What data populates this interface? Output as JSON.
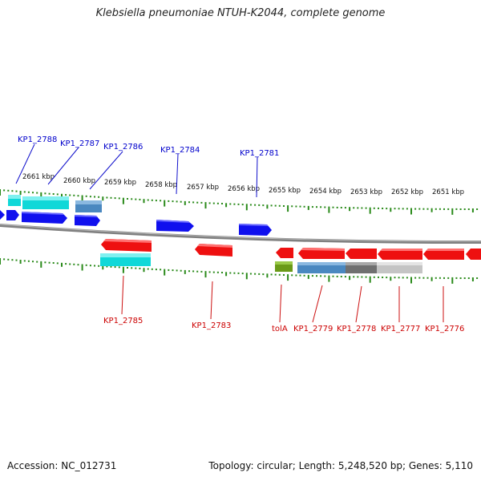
{
  "title": "Klebsiella pneumoniae NTUH-K2044, complete genome",
  "accession": "Accession: NC_012731",
  "summary": "Topology: circular; Length: 5,248,520 bp; Genes: 5,110",
  "colors": {
    "forward_gene": "#1010ee",
    "reverse_gene": "#ee1010",
    "cyan_feature": "#10d8d8",
    "steelblue_feature": "#4a88c0",
    "olive_feature": "#6a9a18",
    "gray_feature": "#707070",
    "lightgray_feature": "#c4c4c4",
    "backbone": "#808080",
    "tick": "#2a8a1a",
    "forward_label": "#0000cc",
    "reverse_label": "#cc0000"
  },
  "ruler_ticks": [
    "2661 kbp",
    "2660 kbp",
    "2659 kbp",
    "2658 kbp",
    "2657 kbp",
    "2656 kbp",
    "2655 kbp",
    "2654 kbp",
    "2653 kbp",
    "2652 kbp",
    "2651 kbp"
  ],
  "forward_labels": [
    "KP1_2788",
    "KP1_2787",
    "KP1_2786",
    "KP1_2784",
    "KP1_2781"
  ],
  "reverse_labels": [
    "KP1_2785",
    "KP1_2783",
    "tolA",
    "KP1_2779",
    "KP1_2778",
    "KP1_2777",
    "KP1_2776"
  ]
}
